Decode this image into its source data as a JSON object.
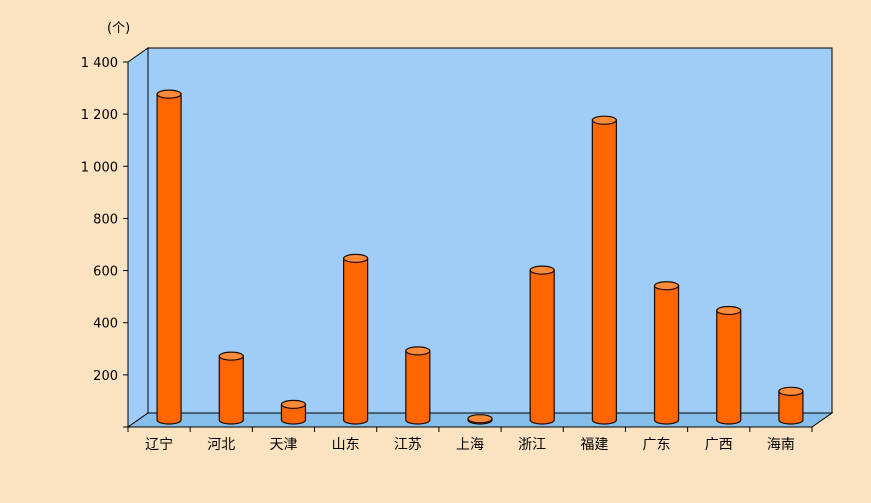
{
  "chart_data": {
    "type": "bar",
    "title": "",
    "xlabel": "",
    "ylabel": "",
    "unit_label": "(个)",
    "categories": [
      "辽宁",
      "河北",
      "天津",
      "山东",
      "江苏",
      "上海",
      "浙江",
      "福建",
      "广东",
      "广西",
      "海南"
    ],
    "values": [
      1250,
      245,
      60,
      620,
      265,
      5,
      575,
      1150,
      515,
      420,
      110
    ],
    "ylim": [
      0,
      1400
    ],
    "yticks": [
      0,
      200,
      400,
      600,
      800,
      1000,
      1200,
      1400
    ],
    "ytick_labels": [
      "",
      "200",
      "400",
      "600",
      "800",
      "1 000",
      "1 200",
      "1 400"
    ],
    "grid": false,
    "colors": {
      "page_background": "#fbe3c1",
      "plot_wall": "#9fcdf8",
      "plot_floor": "#86bde9",
      "bar_fill": "#ff6600",
      "bar_top": "#ff8a3a",
      "bar_outline": "#1a0a00"
    }
  }
}
